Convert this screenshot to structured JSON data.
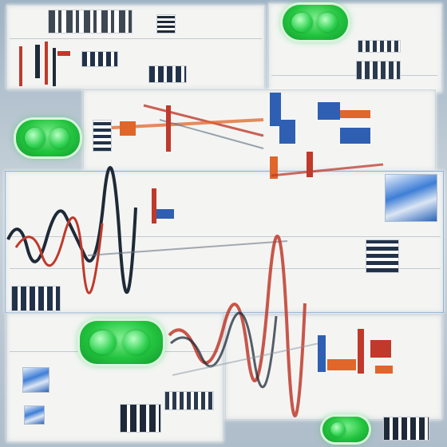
{
  "colors": {
    "toggle_green": "#22c43e",
    "accent_red": "#c0392b",
    "accent_orange": "#e0662a",
    "accent_blue": "#2f5fb3",
    "ink_dark": "#1f2a38",
    "panel_white": "#f4f5f3"
  },
  "controls": {
    "toggles": [
      {
        "name": "toggle-top-right",
        "state": "on"
      },
      {
        "name": "toggle-left-middle",
        "state": "on"
      },
      {
        "name": "toggle-bottom-center",
        "state": "on"
      },
      {
        "name": "toggle-bottom-right",
        "state": "on"
      }
    ]
  },
  "icons": [
    "image-thumbnail-icon",
    "waveform-icon",
    "bar-glyph-icon"
  ]
}
